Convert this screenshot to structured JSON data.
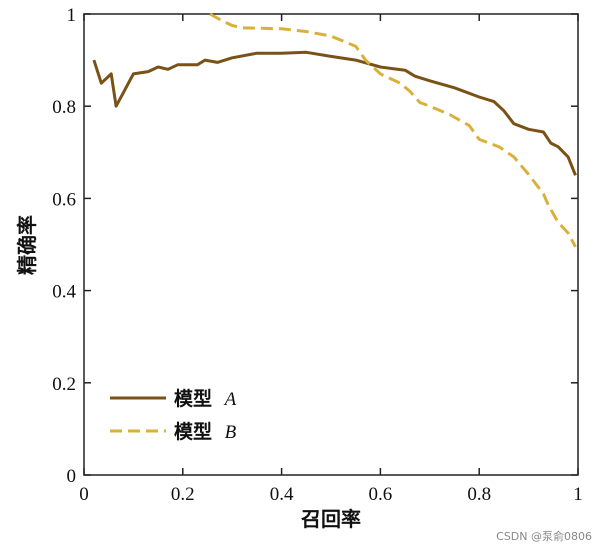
{
  "chart_data": {
    "type": "line",
    "xlabel": "召回率",
    "ylabel": "精确率",
    "xlim": [
      0,
      1
    ],
    "ylim": [
      0,
      1
    ],
    "x_ticks": [
      "0",
      "0.2",
      "0.4",
      "0.6",
      "0.8",
      "1"
    ],
    "y_ticks": [
      "0",
      "0.2",
      "0.4",
      "0.6",
      "0.8",
      "1"
    ],
    "legend_position": "bottom-left",
    "series": [
      {
        "name": "模型",
        "name_suffix": "A",
        "color": "#7a5218",
        "style": "solid",
        "points": [
          [
            0.02,
            0.9
          ],
          [
            0.035,
            0.85
          ],
          [
            0.055,
            0.87
          ],
          [
            0.065,
            0.8
          ],
          [
            0.08,
            0.83
          ],
          [
            0.1,
            0.87
          ],
          [
            0.13,
            0.875
          ],
          [
            0.15,
            0.885
          ],
          [
            0.17,
            0.88
          ],
          [
            0.19,
            0.89
          ],
          [
            0.23,
            0.89
          ],
          [
            0.245,
            0.9
          ],
          [
            0.27,
            0.895
          ],
          [
            0.3,
            0.905
          ],
          [
            0.35,
            0.915
          ],
          [
            0.4,
            0.915
          ],
          [
            0.45,
            0.917
          ],
          [
            0.5,
            0.908
          ],
          [
            0.55,
            0.9
          ],
          [
            0.6,
            0.885
          ],
          [
            0.65,
            0.878
          ],
          [
            0.67,
            0.865
          ],
          [
            0.7,
            0.855
          ],
          [
            0.75,
            0.84
          ],
          [
            0.8,
            0.82
          ],
          [
            0.83,
            0.81
          ],
          [
            0.85,
            0.79
          ],
          [
            0.87,
            0.762
          ],
          [
            0.9,
            0.75
          ],
          [
            0.93,
            0.744
          ],
          [
            0.945,
            0.72
          ],
          [
            0.96,
            0.712
          ],
          [
            0.98,
            0.69
          ],
          [
            0.995,
            0.65
          ]
        ]
      },
      {
        "name": "模型",
        "name_suffix": "B",
        "color": "#d9b13a",
        "style": "dashed",
        "points": [
          [
            0.255,
            1.0
          ],
          [
            0.28,
            0.985
          ],
          [
            0.3,
            0.975
          ],
          [
            0.32,
            0.97
          ],
          [
            0.4,
            0.968
          ],
          [
            0.45,
            0.962
          ],
          [
            0.5,
            0.952
          ],
          [
            0.55,
            0.93
          ],
          [
            0.57,
            0.9
          ],
          [
            0.6,
            0.87
          ],
          [
            0.64,
            0.85
          ],
          [
            0.66,
            0.832
          ],
          [
            0.68,
            0.808
          ],
          [
            0.7,
            0.8
          ],
          [
            0.74,
            0.782
          ],
          [
            0.78,
            0.758
          ],
          [
            0.8,
            0.728
          ],
          [
            0.84,
            0.712
          ],
          [
            0.87,
            0.69
          ],
          [
            0.9,
            0.652
          ],
          [
            0.93,
            0.61
          ],
          [
            0.94,
            0.585
          ],
          [
            0.96,
            0.548
          ],
          [
            0.98,
            0.525
          ],
          [
            0.995,
            0.495
          ]
        ]
      }
    ]
  },
  "watermark": "CSDN @泵俞0806"
}
